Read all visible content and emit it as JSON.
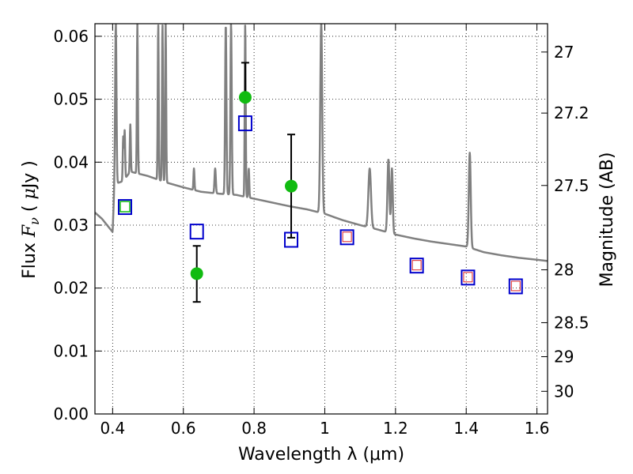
{
  "chart_data": {
    "type": "scatter",
    "xlabel": "Wavelength  λ (μm)",
    "ylabel_left": "Flux  F_ν  ( μJy )",
    "ylabel_left_parts": {
      "a": "Flux ",
      "var": "F",
      "sub": "ν",
      "b": "  ( ",
      "mu": "μ",
      "c": "Jy )"
    },
    "ylabel_right": "Magnitude (AB)",
    "xlim": [
      0.35,
      1.63
    ],
    "ylim": [
      0.0,
      0.062
    ],
    "grid": true,
    "x_ticks": [
      0.4,
      0.6,
      0.8,
      1.0,
      1.2,
      1.4,
      1.6
    ],
    "x_tick_labels": [
      "0.4",
      "0.6",
      "0.8",
      "1",
      "1.2",
      "1.4",
      "1.6"
    ],
    "y_ticks": [
      0.0,
      0.01,
      0.02,
      0.03,
      0.04,
      0.05,
      0.06
    ],
    "y_tick_labels": [
      "0.00",
      "0.01",
      "0.02",
      "0.03",
      "0.04",
      "0.05",
      "0.06"
    ],
    "right_ticks": [
      {
        "label": "27",
        "flux": 0.0575
      },
      {
        "label": "27.2",
        "flux": 0.0478
      },
      {
        "label": "27.5",
        "flux": 0.0363
      },
      {
        "label": "28",
        "flux": 0.0229
      },
      {
        "label": "28.5",
        "flux": 0.0145
      },
      {
        "label": "29",
        "flux": 0.0091
      },
      {
        "label": "30",
        "flux": 0.0036
      }
    ],
    "colors": {
      "spectrum": "#808080",
      "observed": "#11bb11",
      "model_box": "#0000cc",
      "inner_green": "#11bb11",
      "inner_red": "#dd2222",
      "errorbar": "#000000"
    },
    "series": [
      {
        "kind": "spectrum",
        "continuum": [
          [
            0.35,
            0.032
          ],
          [
            0.37,
            0.031
          ],
          [
            0.39,
            0.0296
          ],
          [
            0.4,
            0.0289
          ],
          [
            0.405,
            0.0365
          ],
          [
            0.43,
            0.037
          ],
          [
            0.45,
            0.0385
          ],
          [
            0.5,
            0.0378
          ],
          [
            0.55,
            0.0368
          ],
          [
            0.6,
            0.036
          ],
          [
            0.65,
            0.0353
          ],
          [
            0.7,
            0.035
          ],
          [
            0.75,
            0.0348
          ],
          [
            0.8,
            0.0342
          ],
          [
            0.85,
            0.0336
          ],
          [
            0.9,
            0.033
          ],
          [
            0.95,
            0.0325
          ],
          [
            1.0,
            0.0318
          ],
          [
            1.05,
            0.0308
          ],
          [
            1.1,
            0.03
          ],
          [
            1.15,
            0.0293
          ],
          [
            1.2,
            0.0285
          ],
          [
            1.25,
            0.0279
          ],
          [
            1.3,
            0.0274
          ],
          [
            1.35,
            0.027
          ],
          [
            1.4,
            0.0266
          ],
          [
            1.45,
            0.0257
          ],
          [
            1.5,
            0.0252
          ],
          [
            1.55,
            0.0248
          ],
          [
            1.6,
            0.0245
          ],
          [
            1.63,
            0.0243
          ]
        ],
        "lines": [
          [
            0.409,
            0.062,
            0.004
          ],
          [
            0.43,
            0.044,
            0.003
          ],
          [
            0.434,
            0.045,
            0.003
          ],
          [
            0.45,
            0.046,
            0.003
          ],
          [
            0.47,
            0.062,
            0.003
          ],
          [
            0.529,
            0.062,
            0.003
          ],
          [
            0.541,
            0.062,
            0.003
          ],
          [
            0.55,
            0.062,
            0.003
          ],
          [
            0.63,
            0.039,
            0.003
          ],
          [
            0.69,
            0.039,
            0.004
          ],
          [
            0.72,
            0.062,
            0.004
          ],
          [
            0.735,
            0.062,
            0.004
          ],
          [
            0.775,
            0.062,
            0.003
          ],
          [
            0.785,
            0.039,
            0.003
          ],
          [
            0.99,
            0.062,
            0.006
          ],
          [
            1.127,
            0.039,
            0.008
          ],
          [
            1.18,
            0.0405,
            0.006
          ],
          [
            1.19,
            0.039,
            0.005
          ],
          [
            1.41,
            0.0415,
            0.006
          ]
        ]
      },
      {
        "kind": "model",
        "name": "",
        "points": [
          {
            "x": 0.435,
            "y": 0.033,
            "inner": "green"
          },
          {
            "x": 0.638,
            "y": 0.0291,
            "inner": "none"
          },
          {
            "x": 0.775,
            "y": 0.0463,
            "inner": "none"
          },
          {
            "x": 0.905,
            "y": 0.0278,
            "inner": "none"
          },
          {
            "x": 1.063,
            "y": 0.0282,
            "inner": "red"
          },
          {
            "x": 1.26,
            "y": 0.0237,
            "inner": "red"
          },
          {
            "x": 1.405,
            "y": 0.0218,
            "inner": "red"
          },
          {
            "x": 1.54,
            "y": 0.0204,
            "inner": "red"
          }
        ]
      },
      {
        "kind": "observed",
        "name": "",
        "points": [
          {
            "x": 0.638,
            "y": 0.0223,
            "err_low": 0.0178,
            "err_high": 0.0267
          },
          {
            "x": 0.775,
            "y": 0.0503,
            "err_low": null,
            "err_high": 0.0558
          },
          {
            "x": 0.905,
            "y": 0.0362,
            "err_low": 0.028,
            "err_high": 0.0444
          }
        ]
      }
    ]
  }
}
